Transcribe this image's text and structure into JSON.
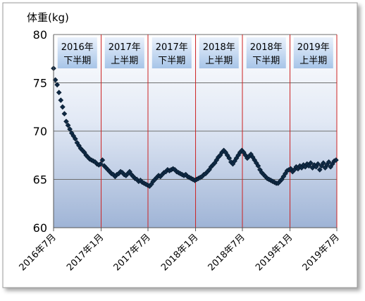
{
  "chart_data": {
    "type": "scatter",
    "ylabel": "体重(kg)",
    "ylim": [
      60,
      80
    ],
    "yticks": [
      60,
      65,
      70,
      75,
      80
    ],
    "xlim": [
      "2016-07-01",
      "2019-07-01"
    ],
    "xtick_labels": [
      "2016年7月",
      "2017年1月",
      "2017年7月",
      "2018年1月",
      "2018年7月",
      "2019年1月",
      "2019年7月"
    ],
    "periods": [
      {
        "year": "2016年",
        "half": "下半期"
      },
      {
        "year": "2017年",
        "half": "上半期"
      },
      {
        "year": "2017年",
        "half": "下半期"
      },
      {
        "year": "2018年",
        "half": "上半期"
      },
      {
        "year": "2018年",
        "half": "下半期"
      },
      {
        "year": "2019年",
        "half": "上半期"
      }
    ],
    "grid": "horizontal",
    "marker_color": "#0f2a45",
    "divider_color": "#cc2222",
    "series": [
      {
        "x": [
          "2016-07-01",
          "2016-07-08",
          "2016-07-15",
          "2016-07-22",
          "2016-07-29",
          "2016-08-05",
          "2016-08-12",
          "2016-08-19",
          "2016-08-26",
          "2016-09-02",
          "2016-09-09",
          "2016-09-16",
          "2016-09-23",
          "2016-09-30",
          "2016-10-07",
          "2016-10-14",
          "2016-10-21",
          "2016-10-28",
          "2016-11-04",
          "2016-11-11",
          "2016-11-18",
          "2016-11-25",
          "2016-12-02",
          "2016-12-09",
          "2016-12-16",
          "2016-12-23",
          "2016-12-30",
          "2017-01-06",
          "2017-01-13",
          "2017-01-20",
          "2017-01-27",
          "2017-02-03",
          "2017-02-10",
          "2017-02-17",
          "2017-02-24",
          "2017-03-03",
          "2017-03-10",
          "2017-03-17",
          "2017-03-24",
          "2017-03-31",
          "2017-04-07",
          "2017-04-14",
          "2017-04-21",
          "2017-04-28",
          "2017-05-05",
          "2017-05-12",
          "2017-05-19",
          "2017-05-26",
          "2017-06-02",
          "2017-06-09",
          "2017-06-16",
          "2017-06-23",
          "2017-06-30",
          "2017-07-07",
          "2017-07-14",
          "2017-07-21",
          "2017-07-28",
          "2017-08-04",
          "2017-08-11",
          "2017-08-18",
          "2017-08-25",
          "2017-09-01",
          "2017-09-08",
          "2017-09-15",
          "2017-09-22",
          "2017-09-29",
          "2017-10-06",
          "2017-10-13",
          "2017-10-20",
          "2017-10-27",
          "2017-11-03",
          "2017-11-10",
          "2017-11-17",
          "2017-11-24",
          "2017-12-01",
          "2017-12-08",
          "2017-12-15",
          "2017-12-22",
          "2017-12-29",
          "2018-01-05",
          "2018-01-12",
          "2018-01-19",
          "2018-01-26",
          "2018-02-02",
          "2018-02-09",
          "2018-02-16",
          "2018-02-23",
          "2018-03-02",
          "2018-03-09",
          "2018-03-16",
          "2018-03-23",
          "2018-03-30",
          "2018-04-06",
          "2018-04-13",
          "2018-04-20",
          "2018-04-27",
          "2018-05-04",
          "2018-05-11",
          "2018-05-18",
          "2018-05-25",
          "2018-06-01",
          "2018-06-08",
          "2018-06-15",
          "2018-06-22",
          "2018-06-29",
          "2018-07-06",
          "2018-07-13",
          "2018-07-20",
          "2018-07-27",
          "2018-08-03",
          "2018-08-10",
          "2018-08-17",
          "2018-08-24",
          "2018-08-31",
          "2018-09-07",
          "2018-09-14",
          "2018-09-21",
          "2018-09-28",
          "2018-10-05",
          "2018-10-12",
          "2018-10-19",
          "2018-10-26",
          "2018-11-02",
          "2018-11-09",
          "2018-11-16",
          "2018-11-23",
          "2018-11-30",
          "2018-12-07",
          "2018-12-14",
          "2018-12-21",
          "2018-12-28",
          "2019-01-04",
          "2019-01-11",
          "2019-01-18",
          "2019-01-25",
          "2019-02-01",
          "2019-02-08",
          "2019-02-15",
          "2019-02-22",
          "2019-03-01",
          "2019-03-08",
          "2019-03-15",
          "2019-03-22",
          "2019-03-29",
          "2019-04-05",
          "2019-04-12",
          "2019-04-19",
          "2019-04-26",
          "2019-05-03",
          "2019-05-10",
          "2019-05-17",
          "2019-05-24",
          "2019-05-31",
          "2019-06-07",
          "2019-06-14",
          "2019-06-21",
          "2019-06-28"
        ],
        "y": [
          76.5,
          75.3,
          74.8,
          74.0,
          73.2,
          72.5,
          71.8,
          71.0,
          70.6,
          70.2,
          69.8,
          69.5,
          69.2,
          68.8,
          68.5,
          68.2,
          68.0,
          67.8,
          67.5,
          67.3,
          67.1,
          67.0,
          66.9,
          66.8,
          66.6,
          66.5,
          66.6,
          67.0,
          66.4,
          66.2,
          66.0,
          65.8,
          65.6,
          65.5,
          65.3,
          65.5,
          65.6,
          65.8,
          65.7,
          65.5,
          65.4,
          65.6,
          65.8,
          65.5,
          65.3,
          65.1,
          65.0,
          64.8,
          64.9,
          64.7,
          64.6,
          64.5,
          64.4,
          64.3,
          64.5,
          64.8,
          65.0,
          65.2,
          65.4,
          65.3,
          65.5,
          65.7,
          65.8,
          66.0,
          65.9,
          66.0,
          66.1,
          66.0,
          65.8,
          65.7,
          65.6,
          65.5,
          65.4,
          65.5,
          65.3,
          65.2,
          65.1,
          65.0,
          64.9,
          65.0,
          65.1,
          65.2,
          65.3,
          65.5,
          65.6,
          65.8,
          66.0,
          66.3,
          66.5,
          66.7,
          67.0,
          67.3,
          67.5,
          67.8,
          68.0,
          67.8,
          67.5,
          67.2,
          66.8,
          66.6,
          66.9,
          67.2,
          67.5,
          67.8,
          68.0,
          67.8,
          67.5,
          67.2,
          67.4,
          67.6,
          67.3,
          67.0,
          66.7,
          66.4,
          66.0,
          65.7,
          65.5,
          65.3,
          65.1,
          65.0,
          64.9,
          64.8,
          64.7,
          64.6,
          64.6,
          64.8,
          65.0,
          65.3,
          65.6,
          65.9,
          66.0,
          66.1,
          65.8,
          66.0,
          66.3,
          66.1,
          66.4,
          66.2,
          66.5,
          66.3,
          66.6,
          66.4,
          66.7,
          66.2,
          66.5,
          66.3,
          66.6,
          66.0,
          66.4,
          66.7,
          66.2,
          66.5,
          66.8,
          66.3,
          66.6,
          66.9,
          67.0
        ]
      }
    ]
  }
}
